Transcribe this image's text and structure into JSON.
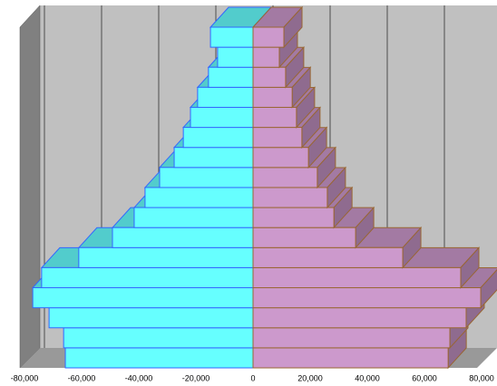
{
  "chart_data": {
    "type": "pyramid3d",
    "categories": [
      null,
      null,
      null,
      null,
      null,
      null,
      null,
      null,
      null,
      null,
      null,
      null,
      null,
      null,
      null,
      null,
      null
    ],
    "series": [
      {
        "color": "#66ffff",
        "values": [
          -65700,
          -66300,
          -71400,
          -77100,
          -74000,
          -61000,
          -49200,
          -41600,
          -37800,
          -32700,
          -27600,
          -24400,
          -21900,
          -19400,
          -15600,
          -12400,
          -14900
        ]
      },
      {
        "color": "#cc99cc",
        "values": [
          68300,
          68900,
          74600,
          79700,
          72700,
          52400,
          35900,
          28300,
          26000,
          22500,
          19400,
          17100,
          15200,
          13700,
          11400,
          9200,
          10800
        ]
      }
    ],
    "xlim": [
      -80000,
      80000
    ],
    "xticks": [
      {
        "value": -80000,
        "label": "-80,000"
      },
      {
        "value": -60000,
        "label": "-60,000"
      },
      {
        "value": -40000,
        "label": "-40,000"
      },
      {
        "value": -20000,
        "label": "-20,000"
      },
      0,
      {
        "value": 20000,
        "label": "20,000"
      },
      {
        "value": 40000,
        "label": "40,000"
      },
      {
        "value": 60000,
        "label": "60,000"
      },
      {
        "value": 80000,
        "label": "80,000"
      }
    ],
    "grid": true
  }
}
